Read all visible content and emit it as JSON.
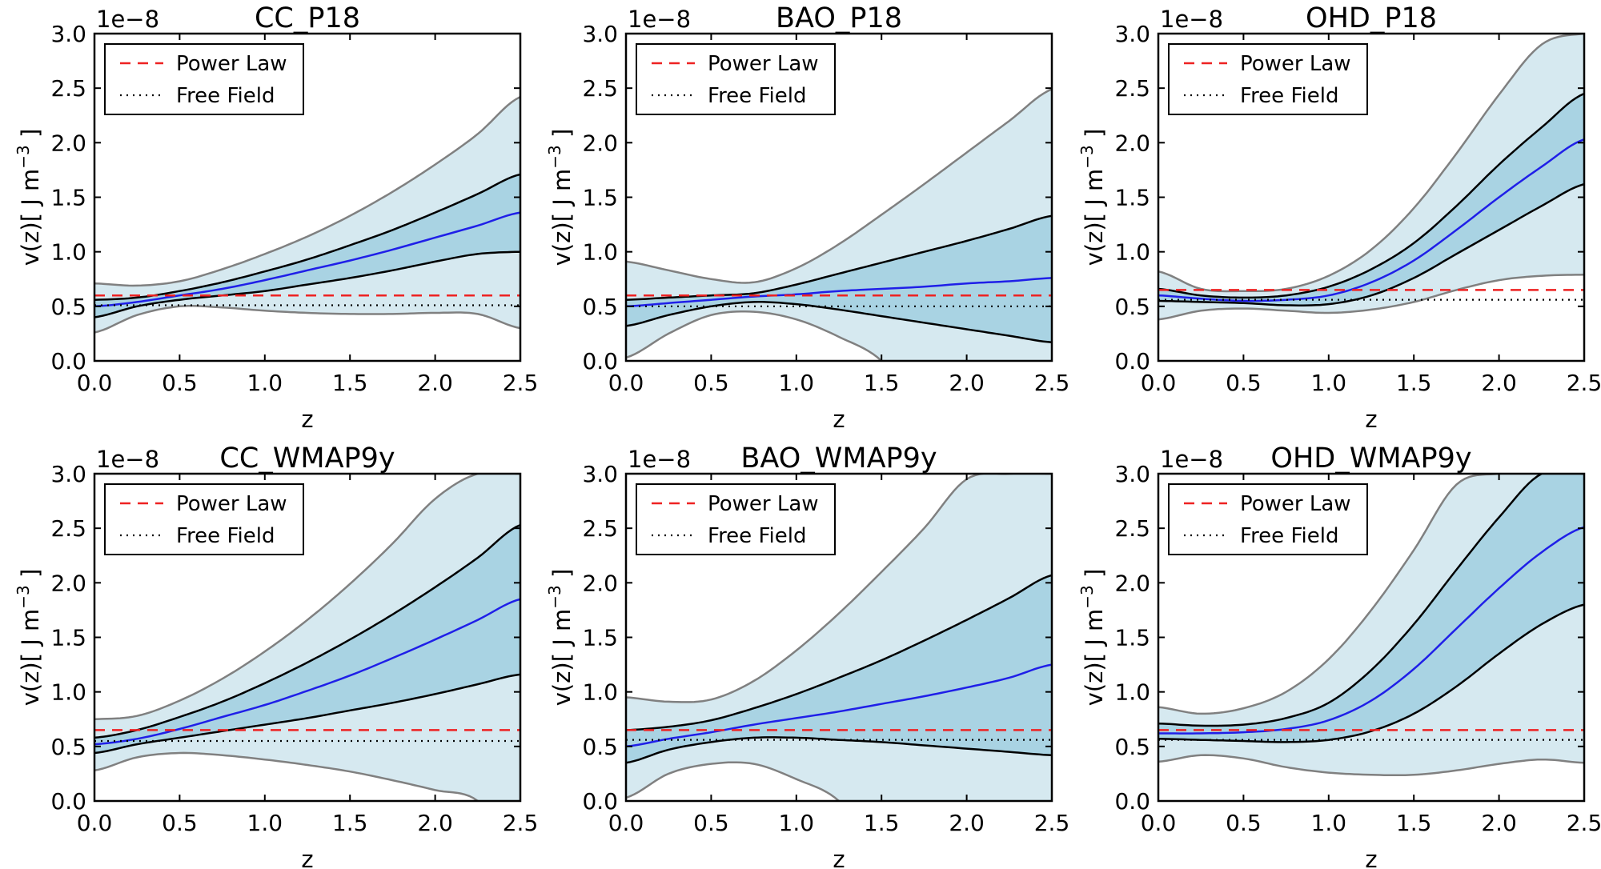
{
  "figure": {
    "offset_label": "1e−8",
    "ylabel_html_parts": [
      "v(z)[ J m",
      "−3",
      " ]"
    ],
    "xlabel": "z",
    "legend": {
      "power_law": "Power Law",
      "free_field": "Free Field"
    },
    "colors": {
      "outer_band": "#d6e9f0",
      "inner_band": "#a9d3e3",
      "mean": "#1f1fe8",
      "inner_edge": "#000000",
      "outer_edge": "#808080",
      "power_law": "#ee2222",
      "free_field": "#000000"
    }
  },
  "chart_data": [
    {
      "type": "line",
      "title": "CC_P18",
      "xlabel": "z",
      "ylabel": "v(z)[ J m−3 ]",
      "xlim": [
        0,
        2.5
      ],
      "ylim": [
        0,
        3.0
      ],
      "xticks": [
        "0.0",
        "0.5",
        "1.0",
        "1.5",
        "2.0",
        "2.5"
      ],
      "yticks": [
        "0.0",
        "0.5",
        "1.0",
        "1.5",
        "2.0",
        "2.5",
        "3.0"
      ],
      "x": [
        0,
        0.25,
        0.5,
        0.75,
        1.0,
        1.25,
        1.5,
        1.75,
        2.0,
        2.25,
        2.5
      ],
      "mean": [
        0.5,
        0.54,
        0.6,
        0.66,
        0.74,
        0.83,
        0.92,
        1.02,
        1.13,
        1.24,
        1.36
      ],
      "lower_1s": [
        0.4,
        0.5,
        0.56,
        0.6,
        0.64,
        0.7,
        0.76,
        0.83,
        0.91,
        0.98,
        1.0
      ],
      "upper_1s": [
        0.56,
        0.58,
        0.64,
        0.72,
        0.82,
        0.93,
        1.06,
        1.2,
        1.36,
        1.53,
        1.71
      ],
      "lower_2s": [
        0.26,
        0.42,
        0.5,
        0.49,
        0.46,
        0.44,
        0.43,
        0.43,
        0.44,
        0.43,
        0.3
      ],
      "upper_2s": [
        0.71,
        0.69,
        0.73,
        0.84,
        0.98,
        1.14,
        1.33,
        1.55,
        1.8,
        2.08,
        2.42
      ],
      "power_law": 0.6,
      "free_field": 0.51,
      "offset": "1e−8",
      "legend": "top-left"
    },
    {
      "type": "line",
      "title": "BAO_P18",
      "xlabel": "z",
      "ylabel": "v(z)[ J m−3 ]",
      "xlim": [
        0,
        2.5
      ],
      "ylim": [
        0,
        3.0
      ],
      "xticks": [
        "0.0",
        "0.5",
        "1.0",
        "1.5",
        "2.0",
        "2.5"
      ],
      "yticks": [
        "0.0",
        "0.5",
        "1.0",
        "1.5",
        "2.0",
        "2.5",
        "3.0"
      ],
      "x": [
        0,
        0.25,
        0.5,
        0.75,
        1.0,
        1.25,
        1.5,
        1.75,
        2.0,
        2.25,
        2.5
      ],
      "mean": [
        0.5,
        0.53,
        0.56,
        0.59,
        0.61,
        0.64,
        0.66,
        0.68,
        0.71,
        0.73,
        0.76
      ],
      "lower_1s": [
        0.32,
        0.42,
        0.5,
        0.54,
        0.52,
        0.47,
        0.41,
        0.35,
        0.29,
        0.23,
        0.17
      ],
      "upper_1s": [
        0.56,
        0.58,
        0.6,
        0.62,
        0.7,
        0.8,
        0.9,
        1.0,
        1.1,
        1.21,
        1.33
      ],
      "lower_2s": [
        0.03,
        0.25,
        0.42,
        0.45,
        0.38,
        0.22,
        0.0,
        null,
        null,
        null,
        null
      ],
      "upper_2s": [
        0.91,
        0.83,
        0.75,
        0.72,
        0.85,
        1.07,
        1.34,
        1.62,
        1.91,
        2.2,
        2.49
      ],
      "power_law": 0.6,
      "free_field": 0.5,
      "offset": "1e−8",
      "legend": "top-left"
    },
    {
      "type": "line",
      "title": "OHD_P18",
      "xlabel": "z",
      "ylabel": "v(z)[ J m−3 ]",
      "xlim": [
        0,
        2.5
      ],
      "ylim": [
        0,
        3.0
      ],
      "xticks": [
        "0.0",
        "0.5",
        "1.0",
        "1.5",
        "2.0",
        "2.5"
      ],
      "yticks": [
        "0.0",
        "0.5",
        "1.0",
        "1.5",
        "2.0",
        "2.5",
        "3.0"
      ],
      "x": [
        0,
        0.25,
        0.5,
        0.75,
        1.0,
        1.25,
        1.5,
        1.75,
        2.0,
        2.25,
        2.5
      ],
      "mean": [
        0.6,
        0.57,
        0.55,
        0.56,
        0.6,
        0.72,
        0.92,
        1.2,
        1.5,
        1.78,
        2.03
      ],
      "lower_1s": [
        0.55,
        0.54,
        0.53,
        0.51,
        0.52,
        0.6,
        0.76,
        0.98,
        1.2,
        1.42,
        1.62
      ],
      "upper_1s": [
        0.66,
        0.6,
        0.58,
        0.6,
        0.68,
        0.84,
        1.08,
        1.42,
        1.8,
        2.14,
        2.45
      ],
      "lower_2s": [
        0.38,
        0.46,
        0.48,
        0.46,
        0.44,
        0.47,
        0.54,
        0.65,
        0.74,
        0.78,
        0.79
      ],
      "upper_2s": [
        0.82,
        0.66,
        0.64,
        0.66,
        0.78,
        1.02,
        1.4,
        1.9,
        2.44,
        2.9,
        3.0
      ],
      "power_law": 0.65,
      "free_field": 0.56,
      "offset": "1e−8",
      "legend": "top-left"
    },
    {
      "type": "line",
      "title": "CC_WMAP9y",
      "xlabel": "z",
      "ylabel": "v(z)[ J m−3 ]",
      "xlim": [
        0,
        2.5
      ],
      "ylim": [
        0,
        3.0
      ],
      "xticks": [
        "0.0",
        "0.5",
        "1.0",
        "1.5",
        "2.0",
        "2.5"
      ],
      "yticks": [
        "0.0",
        "0.5",
        "1.0",
        "1.5",
        "2.0",
        "2.5",
        "3.0"
      ],
      "x": [
        0,
        0.25,
        0.5,
        0.75,
        1.0,
        1.25,
        1.5,
        1.75,
        2.0,
        2.25,
        2.5
      ],
      "mean": [
        0.52,
        0.57,
        0.66,
        0.77,
        0.88,
        1.01,
        1.15,
        1.31,
        1.48,
        1.66,
        1.85
      ],
      "lower_1s": [
        0.44,
        0.52,
        0.58,
        0.64,
        0.7,
        0.76,
        0.83,
        0.9,
        0.98,
        1.07,
        1.16
      ],
      "upper_1s": [
        0.58,
        0.65,
        0.77,
        0.91,
        1.08,
        1.27,
        1.48,
        1.71,
        1.96,
        2.23,
        2.53
      ],
      "lower_2s": [
        0.28,
        0.4,
        0.44,
        0.42,
        0.38,
        0.33,
        0.27,
        0.19,
        0.1,
        0.0,
        null
      ],
      "upper_2s": [
        0.75,
        0.78,
        0.92,
        1.12,
        1.37,
        1.66,
        1.99,
        2.36,
        2.77,
        3.0,
        3.0
      ],
      "power_law": 0.65,
      "free_field": 0.55,
      "offset": "1e−8",
      "legend": "top-left"
    },
    {
      "type": "line",
      "title": "BAO_WMAP9y",
      "xlabel": "z",
      "ylabel": "v(z)[ J m−3 ]",
      "xlim": [
        0,
        2.5
      ],
      "ylim": [
        0,
        3.0
      ],
      "xticks": [
        "0.0",
        "0.5",
        "1.0",
        "1.5",
        "2.0",
        "2.5"
      ],
      "yticks": [
        "0.0",
        "0.5",
        "1.0",
        "1.5",
        "2.0",
        "2.5",
        "3.0"
      ],
      "x": [
        0,
        0.25,
        0.5,
        0.75,
        1.0,
        1.25,
        1.5,
        1.75,
        2.0,
        2.25,
        2.5
      ],
      "mean": [
        0.5,
        0.57,
        0.63,
        0.7,
        0.76,
        0.82,
        0.89,
        0.96,
        1.04,
        1.13,
        1.25
      ],
      "lower_1s": [
        0.35,
        0.47,
        0.54,
        0.58,
        0.58,
        0.56,
        0.54,
        0.51,
        0.48,
        0.45,
        0.42
      ],
      "upper_1s": [
        0.65,
        0.68,
        0.74,
        0.85,
        0.98,
        1.13,
        1.29,
        1.47,
        1.66,
        1.86,
        2.07
      ],
      "lower_2s": [
        0.03,
        0.25,
        0.34,
        0.34,
        0.2,
        0.0,
        null,
        null,
        null,
        null,
        null
      ],
      "upper_2s": [
        0.95,
        0.91,
        0.93,
        1.1,
        1.38,
        1.72,
        2.1,
        2.5,
        2.95,
        3.0,
        3.0
      ],
      "power_law": 0.65,
      "free_field": 0.56,
      "offset": "1e−8",
      "legend": "top-left"
    },
    {
      "type": "line",
      "title": "OHD_WMAP9y",
      "xlabel": "z",
      "ylabel": "v(z)[ J m−3 ]",
      "xlim": [
        0,
        2.5
      ],
      "ylim": [
        0,
        3.0
      ],
      "xticks": [
        "0.0",
        "0.5",
        "1.0",
        "1.5",
        "2.0",
        "2.5"
      ],
      "yticks": [
        "0.0",
        "0.5",
        "1.0",
        "1.5",
        "2.0",
        "2.5",
        "3.0"
      ],
      "x": [
        0,
        0.25,
        0.5,
        0.75,
        1.0,
        1.25,
        1.5,
        1.75,
        2.0,
        2.25,
        2.5
      ],
      "mean": [
        0.62,
        0.62,
        0.63,
        0.66,
        0.74,
        0.92,
        1.21,
        1.58,
        1.95,
        2.28,
        2.51
      ],
      "lower_1s": [
        0.57,
        0.56,
        0.55,
        0.54,
        0.56,
        0.64,
        0.8,
        1.05,
        1.35,
        1.62,
        1.8
      ],
      "upper_1s": [
        0.71,
        0.69,
        0.7,
        0.76,
        0.9,
        1.2,
        1.62,
        2.12,
        2.6,
        3.0,
        3.0
      ],
      "lower_2s": [
        0.36,
        0.42,
        0.39,
        0.31,
        0.26,
        0.24,
        0.24,
        0.28,
        0.34,
        0.38,
        0.35
      ],
      "upper_2s": [
        0.86,
        0.8,
        0.85,
        1.0,
        1.3,
        1.75,
        2.3,
        2.9,
        3.0,
        3.0,
        3.0
      ],
      "power_law": 0.65,
      "free_field": 0.56,
      "offset": "1e−8",
      "legend": "top-left"
    }
  ]
}
